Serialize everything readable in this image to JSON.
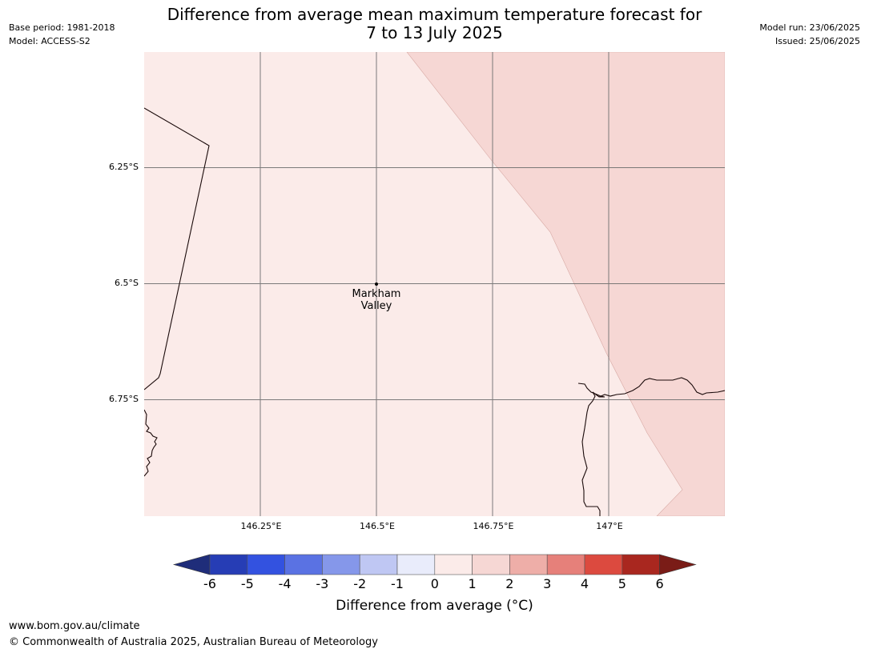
{
  "header": {
    "title_line1": "Difference from average mean maximum temperature forecast for",
    "title_line2": "7 to 13 July 2025",
    "base_period": "Base period: 1981-2018",
    "model": "Model: ACCESS-S2",
    "model_run": "Model run: 23/06/2025",
    "issued": "Issued: 25/06/2025"
  },
  "map": {
    "lat_labels": [
      "6.25°S",
      "6.5°S",
      "6.75°S"
    ],
    "lon_labels": [
      "146.25°E",
      "146.5°E",
      "146.75°E",
      "147°E"
    ],
    "place": {
      "name_line1": "Markham",
      "name_line2": "Valley"
    },
    "region_colors": {
      "zero_to_one": "#fbebe9",
      "one_to_two": "#f6d7d4"
    }
  },
  "colorbar": {
    "tick_labels": [
      "-6",
      "-5",
      "-4",
      "-3",
      "-2",
      "-1",
      "0",
      "1",
      "2",
      "3",
      "4",
      "5",
      "6"
    ],
    "colors": [
      "#1f2d7a",
      "#263db5",
      "#3352e0",
      "#5a72e3",
      "#8597ea",
      "#bfc7f3",
      "#e9ecfb",
      "#fbebe9",
      "#f6d7d4",
      "#eeaea8",
      "#e6807a",
      "#dc4a3f",
      "#a9271f",
      "#7a1c17"
    ],
    "label": "Difference from average ($^\\circ$C)",
    "label_display": "Difference from average (°C)"
  },
  "footer": {
    "url": "www.bom.gov.au/climate",
    "copyright": "© Commonwealth of Australia 2025, Australian Bureau of Meteorology"
  }
}
